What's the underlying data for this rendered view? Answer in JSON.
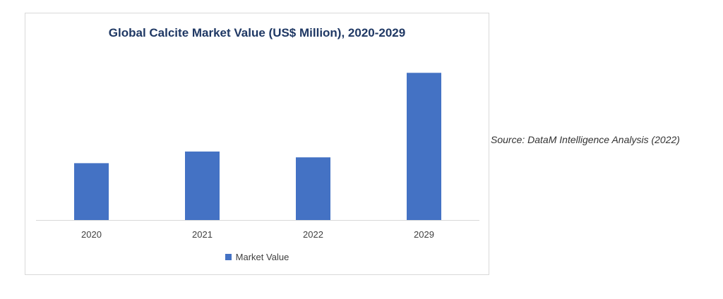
{
  "source_note": "Source: DataM Intelligence Analysis (2022)",
  "colors": {
    "bar": "#4472c4",
    "title": "#1f3864",
    "axis": "#d9d9d9",
    "tick_text": "#404040"
  },
  "chart_data": {
    "type": "bar",
    "title": "Global Calcite Market Value (US$ Million), 2020-2029",
    "xlabel": "",
    "ylabel": "",
    "categories": [
      "2020",
      "2021",
      "2022",
      "2029"
    ],
    "series": [
      {
        "name": "Market Value",
        "values": [
          39,
          47,
          43,
          101
        ]
      }
    ],
    "ylim": [
      0,
      120
    ],
    "grid": false,
    "legend": "bottom"
  }
}
